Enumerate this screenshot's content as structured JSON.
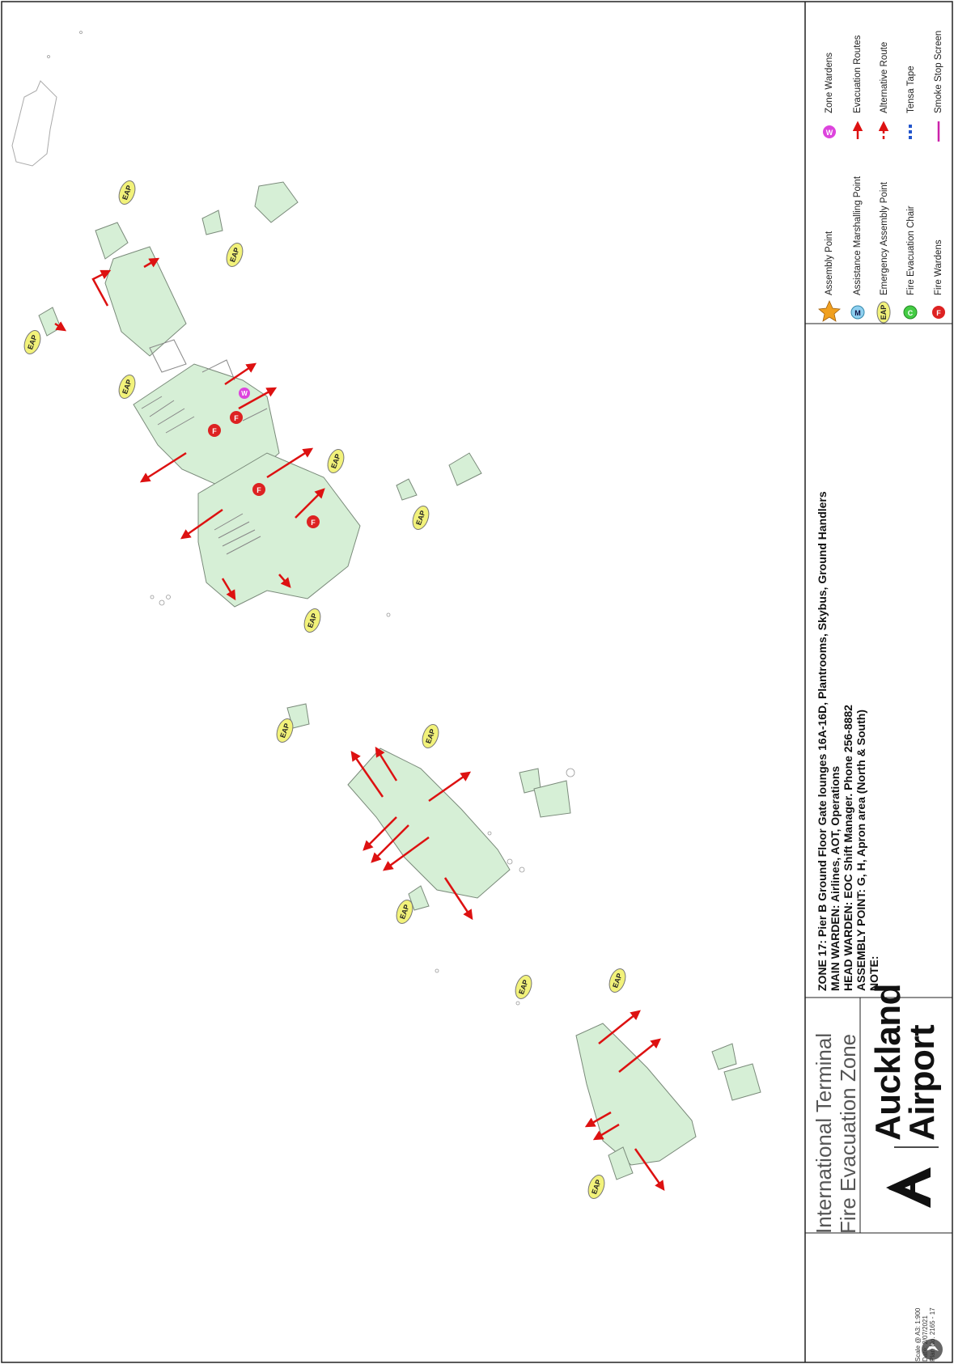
{
  "title": {
    "line1": "International Terminal",
    "line2": "Fire Evacuation Zone"
  },
  "brand": {
    "line1": "Auckland",
    "line2": "Airport"
  },
  "zone_info": {
    "zone": "ZONE 17: Pier B Ground Floor Gate lounges 16A-16D, Plantrooms, Skybus, Ground Handlers",
    "main_warden": "MAIN WARDEN: Airlines, AOT, Operations",
    "head_warden": "HEAD WARDEN: EOC Shift Manager. Phone 256-8882",
    "assembly_point": "ASSEMBLY POINT: G, H, Apron area (North & South)",
    "note": "NOTE:"
  },
  "plan_meta": {
    "scale": "Scale @ A3: 1:900",
    "date": "Date: 2/07/2021",
    "plan_no": "Plan No. 2165 - 17"
  },
  "legend": [
    {
      "icon": "assembly-point-star",
      "label": "Assembly Point",
      "color": "#f0a020",
      "glyph": "AP"
    },
    {
      "icon": "assistance-marshalling-point",
      "label": "Assistance Marshalling Point",
      "color": "#8fd0f0",
      "glyph": "M"
    },
    {
      "icon": "emergency-assembly-point",
      "label": "Emergency Assembly Point",
      "color": "#f2f27a",
      "glyph": "EAP"
    },
    {
      "icon": "fire-evacuation-chair",
      "label": "Fire Evacuation Chair",
      "color": "#44cc44",
      "glyph": "C"
    },
    {
      "icon": "fire-wardens",
      "label": "Fire Wardens",
      "color": "#dd2222",
      "glyph": "F"
    },
    {
      "icon": "zone-wardens",
      "label": "Zone Wardens",
      "color": "#dd44dd",
      "glyph": "W"
    },
    {
      "icon": "evacuation-routes",
      "label": "Evacuation Routes",
      "color": "#dd1111"
    },
    {
      "icon": "alternative-route",
      "label": "Alternative Route",
      "color": "#dd1111"
    },
    {
      "icon": "tensa-tape",
      "label": "Tensa Tape",
      "color": "#2255cc"
    },
    {
      "icon": "smoke-stop-screen",
      "label": "Smoke Stop Screen",
      "color": "#cc22aa"
    }
  ],
  "map": {
    "eap_label": "EAP",
    "fire_warden_glyph": "F",
    "zone_warden_glyph": "W",
    "colors": {
      "zone_fill": "#d6efd6",
      "building_line": "#7a8a7a",
      "route": "#dd1111",
      "eap_fill": "#f2f27a"
    }
  }
}
